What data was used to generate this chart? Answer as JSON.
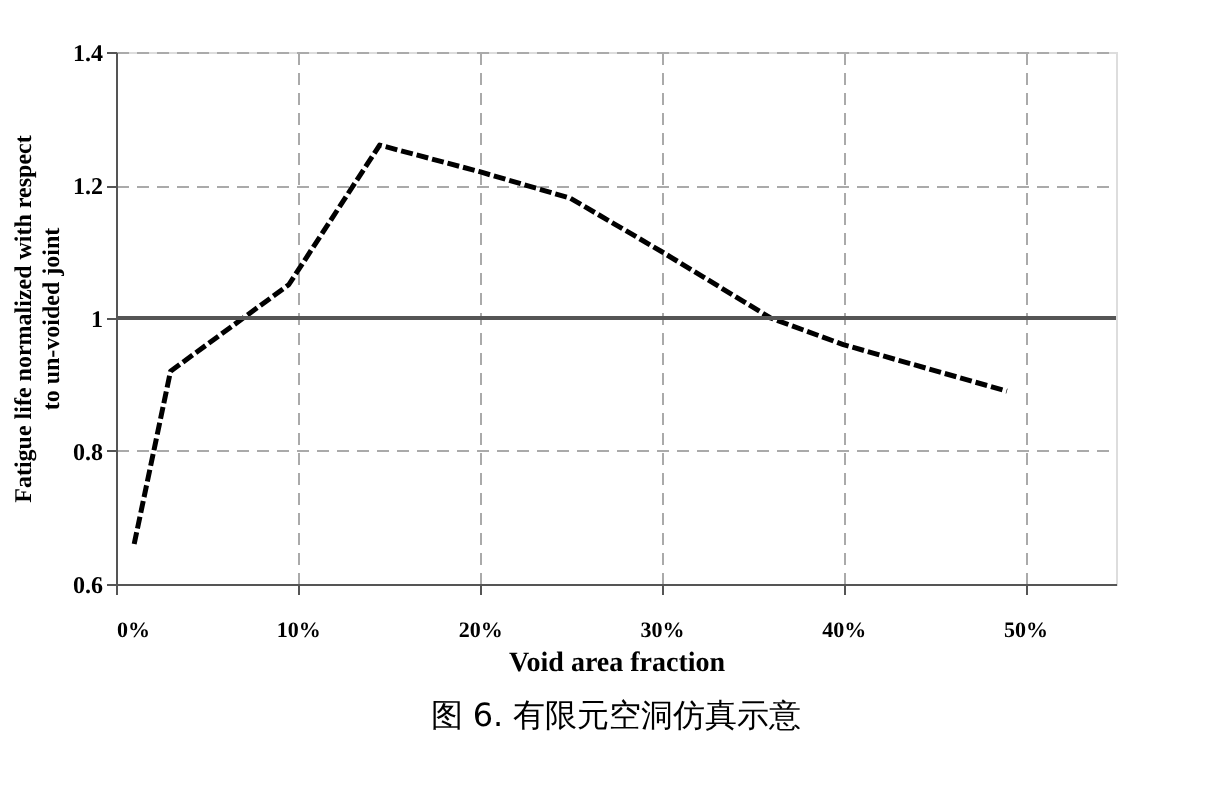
{
  "chart_data": {
    "type": "line",
    "xlabel": "Void area fraction",
    "ylabel": "Fatigue life normalized with respect to un-voided joint",
    "x": [
      1,
      3,
      9.5,
      14.5,
      20,
      25,
      30,
      36,
      40,
      49
    ],
    "series": [
      {
        "color": "#000000",
        "values": [
          0.66,
          0.92,
          1.05,
          1.26,
          1.22,
          1.18,
          1.1,
          1.0,
          0.96,
          0.89
        ]
      }
    ],
    "xlim": [
      0,
      55
    ],
    "xticks": [
      {
        "value": 0,
        "label": "0%"
      },
      {
        "value": 10,
        "label": "10%"
      },
      {
        "value": 20,
        "label": "20%"
      },
      {
        "value": 30,
        "label": "30%"
      },
      {
        "value": 40,
        "label": "40%"
      },
      {
        "value": 50,
        "label": "50%"
      }
    ],
    "ylim": [
      0.6,
      1.4
    ],
    "yticks": [
      0.6,
      0.8,
      1,
      1.2,
      1.4
    ],
    "ref_lines": [
      {
        "axis": "y",
        "value": 1,
        "color": "#555555",
        "line_style": "solid"
      }
    ],
    "grid": true,
    "marker": "none",
    "line_style": "dashed",
    "annotations": [
      "图 6. 有限元空洞仿真示意"
    ]
  }
}
